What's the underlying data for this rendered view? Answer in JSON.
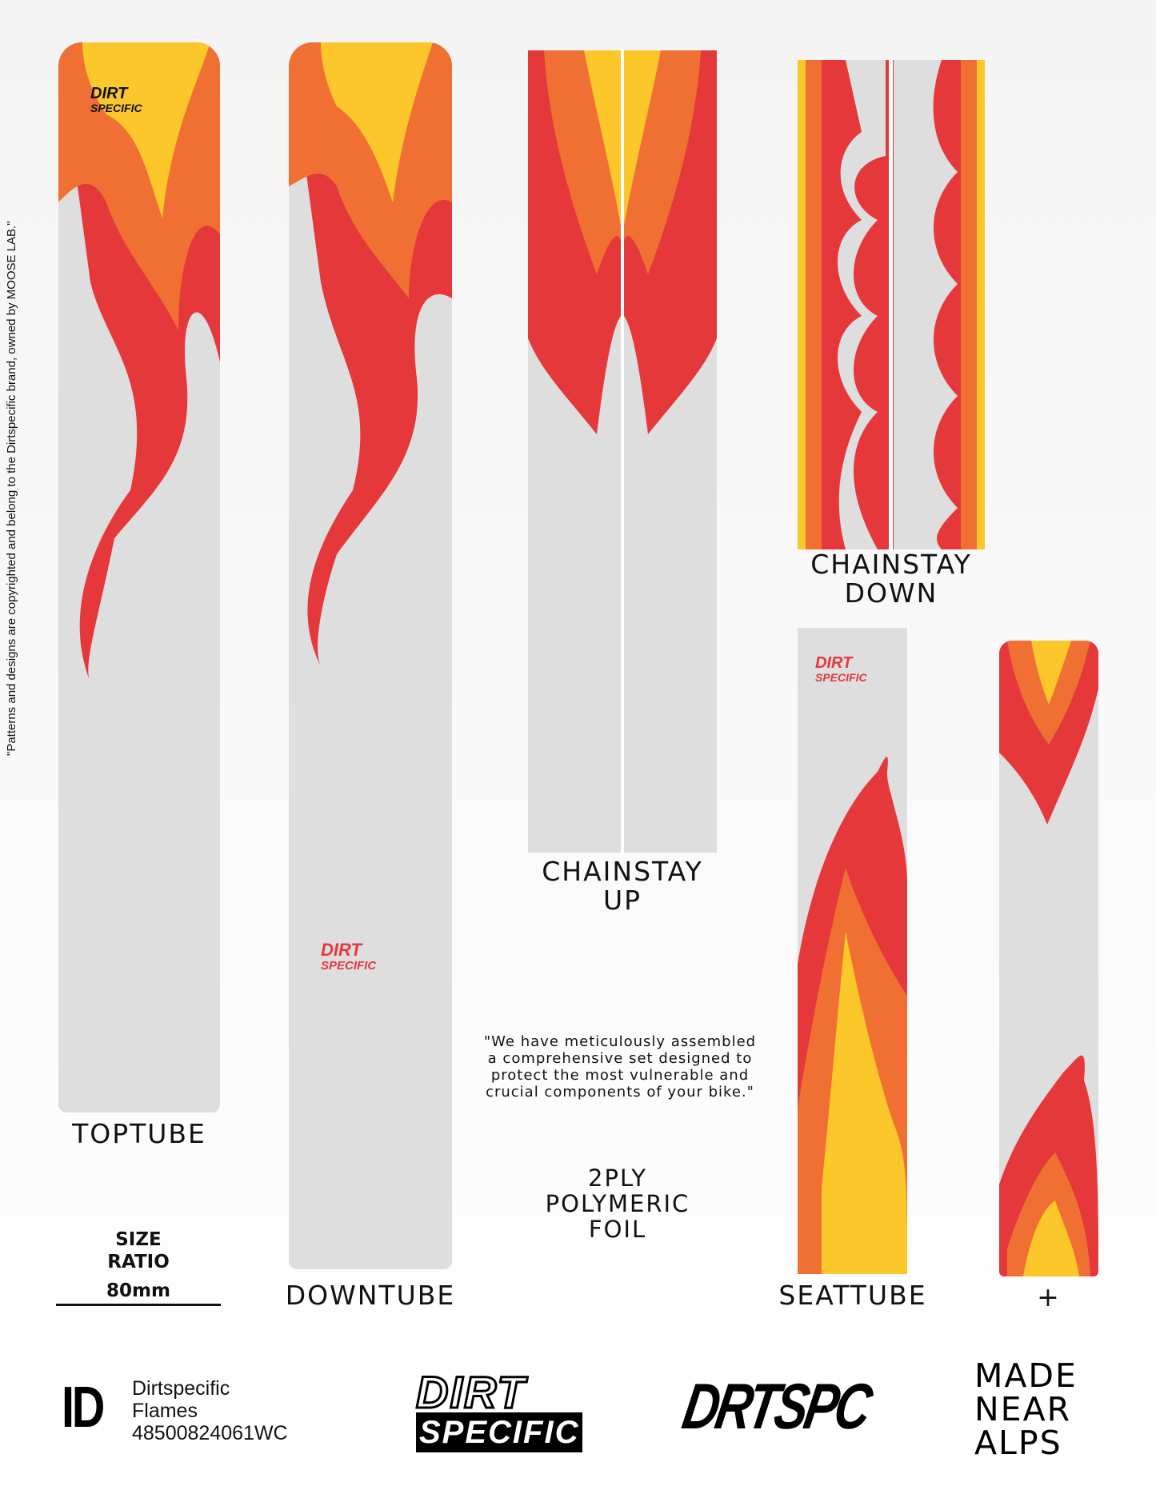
{
  "copyright": "\"Patterns and designs are copyrighted and belong to the Dirtspecific brand, owned by MOOSE LAB.\"",
  "colors": {
    "red": "#e5383b",
    "orange": "#f07034",
    "yellow": "#fcc72a",
    "piece": "#dedede"
  },
  "pieces": {
    "toptube": "TOPTUBE",
    "downtube": "DOWNTUBE",
    "chainstay_up": [
      "CHAINSTAY",
      "UP"
    ],
    "chainstay_down": [
      "CHAINSTAY",
      "DOWN"
    ],
    "seattube": "SEATTUBE",
    "extra": "+"
  },
  "quote": [
    "\"We have meticulously assembled",
    "a  comprehensive set designed to",
    "protect the most vulnerable and",
    "crucial components of your bike.\""
  ],
  "material": [
    "2PLY",
    "POLYMERIC",
    "FOIL"
  ],
  "size": {
    "title": [
      "SIZE",
      "RATIO"
    ],
    "value": "80mm"
  },
  "footer": {
    "id_mark": "ID",
    "brand": "Dirtspecific",
    "design": "Flames",
    "code": "48500824061WC",
    "logo1": [
      "DIRT",
      "SPECIFIC"
    ],
    "logo2": "DRTSPC",
    "made": [
      "MADE",
      "NEAR",
      "ALPS"
    ]
  },
  "piece_logo": [
    "DIRT",
    "SPECIFIC"
  ]
}
